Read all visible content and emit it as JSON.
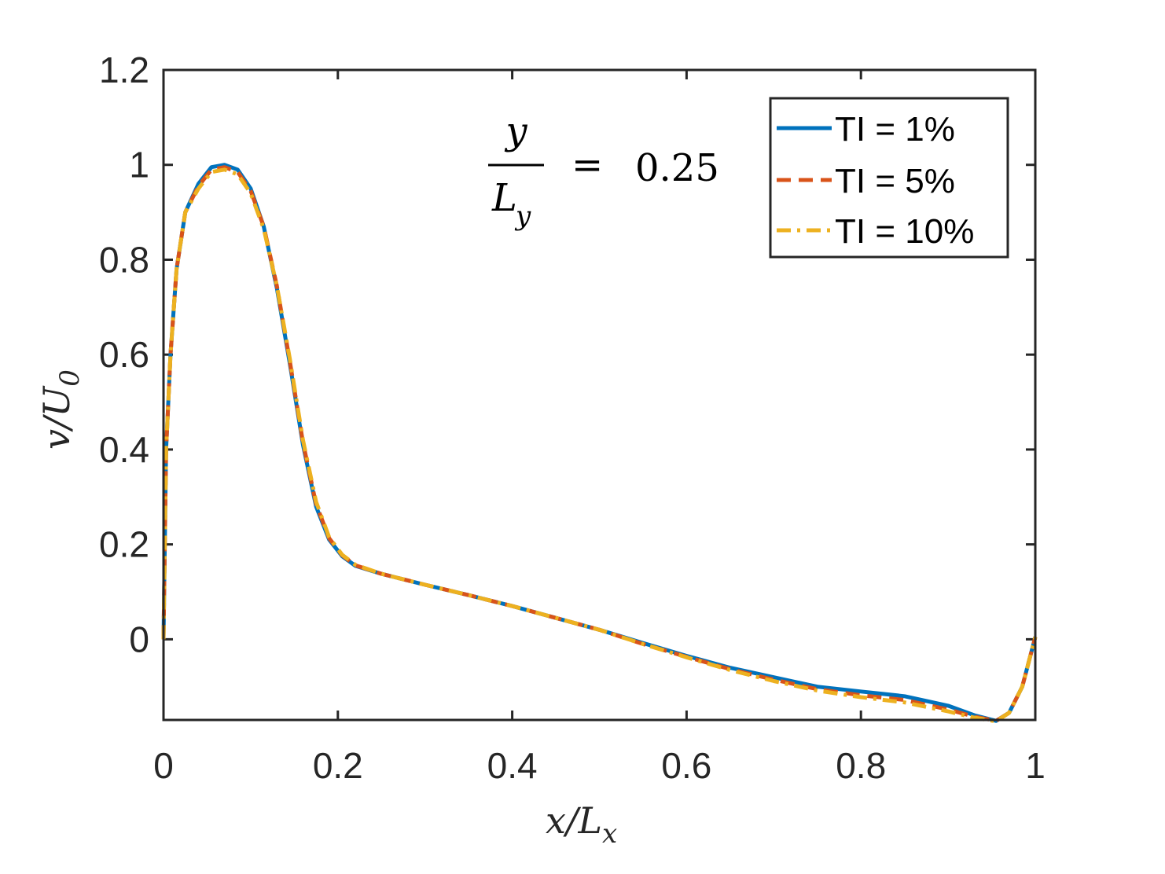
{
  "chart_data": {
    "type": "line",
    "xlabel": "x/L",
    "xlabel_sub": "x",
    "ylabel": "v/U",
    "ylabel_sub": "0",
    "xlim": [
      0,
      1
    ],
    "ylim": [
      -0.17,
      1.2
    ],
    "xticks": [
      0,
      0.2,
      0.4,
      0.6,
      0.8,
      1
    ],
    "xtick_labels": [
      "0",
      "0.2",
      "0.4",
      "0.6",
      "0.8",
      "1"
    ],
    "yticks": [
      0,
      0.2,
      0.4,
      0.6,
      0.8,
      1,
      1.2
    ],
    "ytick_labels": [
      "0",
      "0.2",
      "0.4",
      "0.6",
      "0.8",
      "1",
      "1.2"
    ],
    "grid": false,
    "legend_position": "top-right",
    "annotation": {
      "numerator": "y",
      "denominator": "L",
      "denominator_sub": "y",
      "equals": "=",
      "value": "0.25"
    },
    "series": [
      {
        "name": "TI = 1%",
        "color": "#0072BD",
        "style": "solid",
        "x": [
          0,
          0.003,
          0.008,
          0.015,
          0.025,
          0.04,
          0.055,
          0.07,
          0.085,
          0.1,
          0.115,
          0.13,
          0.145,
          0.16,
          0.175,
          0.19,
          0.205,
          0.22,
          0.25,
          0.3,
          0.35,
          0.4,
          0.45,
          0.5,
          0.55,
          0.6,
          0.65,
          0.7,
          0.75,
          0.8,
          0.85,
          0.9,
          0.93,
          0.955,
          0.97,
          0.985,
          1.0
        ],
        "y": [
          0,
          0.4,
          0.6,
          0.78,
          0.9,
          0.96,
          0.995,
          1.0,
          0.99,
          0.95,
          0.87,
          0.74,
          0.58,
          0.41,
          0.28,
          0.21,
          0.175,
          0.155,
          0.138,
          0.115,
          0.093,
          0.07,
          0.045,
          0.02,
          -0.008,
          -0.035,
          -0.06,
          -0.08,
          -0.1,
          -0.11,
          -0.12,
          -0.14,
          -0.16,
          -0.172,
          -0.155,
          -0.1,
          0.005
        ]
      },
      {
        "name": "TI = 5%",
        "color": "#D95319",
        "style": "dashed",
        "x": [
          0,
          0.003,
          0.008,
          0.015,
          0.025,
          0.04,
          0.055,
          0.07,
          0.085,
          0.1,
          0.115,
          0.13,
          0.145,
          0.16,
          0.175,
          0.19,
          0.205,
          0.22,
          0.25,
          0.3,
          0.35,
          0.4,
          0.45,
          0.5,
          0.55,
          0.6,
          0.65,
          0.7,
          0.75,
          0.8,
          0.85,
          0.9,
          0.93,
          0.955,
          0.97,
          0.985,
          1.0
        ],
        "y": [
          0,
          0.4,
          0.6,
          0.78,
          0.9,
          0.955,
          0.99,
          0.995,
          0.985,
          0.945,
          0.87,
          0.745,
          0.585,
          0.415,
          0.285,
          0.213,
          0.177,
          0.156,
          0.138,
          0.115,
          0.093,
          0.07,
          0.045,
          0.02,
          -0.01,
          -0.037,
          -0.063,
          -0.085,
          -0.105,
          -0.118,
          -0.128,
          -0.148,
          -0.163,
          -0.172,
          -0.155,
          -0.1,
          0.005
        ]
      },
      {
        "name": "TI = 10%",
        "color": "#EDB120",
        "style": "dashdot",
        "x": [
          0,
          0.003,
          0.008,
          0.015,
          0.025,
          0.04,
          0.055,
          0.07,
          0.085,
          0.1,
          0.115,
          0.13,
          0.145,
          0.16,
          0.175,
          0.19,
          0.205,
          0.22,
          0.25,
          0.3,
          0.35,
          0.4,
          0.45,
          0.5,
          0.55,
          0.6,
          0.65,
          0.7,
          0.75,
          0.8,
          0.85,
          0.9,
          0.93,
          0.955,
          0.97,
          0.985,
          1.0
        ],
        "y": [
          0,
          0.4,
          0.6,
          0.78,
          0.9,
          0.95,
          0.985,
          0.99,
          0.98,
          0.94,
          0.865,
          0.745,
          0.59,
          0.42,
          0.29,
          0.215,
          0.178,
          0.157,
          0.138,
          0.115,
          0.093,
          0.07,
          0.045,
          0.02,
          -0.01,
          -0.038,
          -0.065,
          -0.088,
          -0.108,
          -0.122,
          -0.133,
          -0.152,
          -0.165,
          -0.173,
          -0.155,
          -0.1,
          0.005
        ]
      }
    ]
  }
}
